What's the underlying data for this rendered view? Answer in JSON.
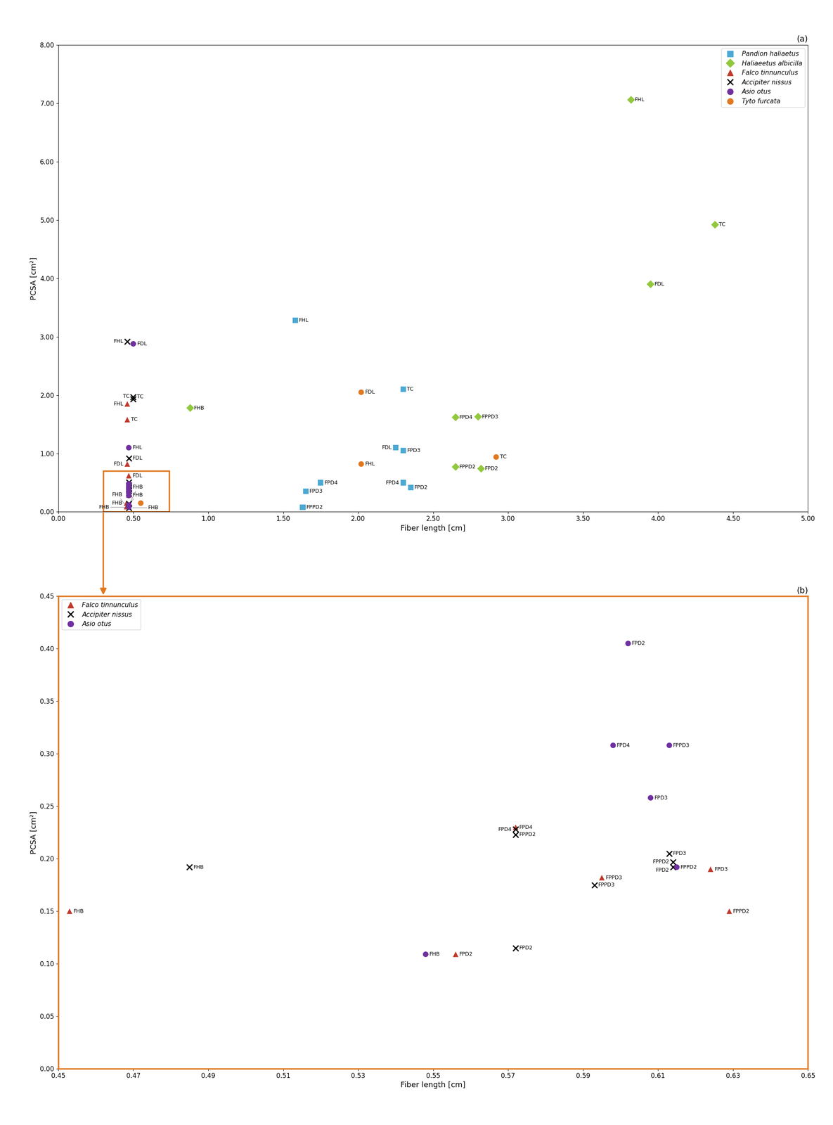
{
  "chart_data": [
    {
      "type": "scatter",
      "title": "(a)",
      "xlabel": "Fiber length [cm]",
      "ylabel": "PCSA [cm²]",
      "xlim": [
        0.0,
        5.0
      ],
      "ylim": [
        0.0,
        8.0
      ],
      "xticks": [
        {
          "value": 0.0,
          "label": "0.00"
        },
        {
          "value": 0.5,
          "label": "0.50"
        },
        {
          "value": 1.0,
          "label": "1.00"
        },
        {
          "value": 1.5,
          "label": "1.50"
        },
        {
          "value": 2.0,
          "label": "2.00"
        },
        {
          "value": 2.5,
          "label": "2.50"
        },
        {
          "value": 3.0,
          "label": "3.00"
        },
        {
          "value": 3.5,
          "label": "3.50"
        },
        {
          "value": 4.0,
          "label": "4.00"
        },
        {
          "value": 4.5,
          "label": "4.50"
        },
        {
          "value": 5.0,
          "label": "5.00"
        }
      ],
      "yticks": [
        {
          "value": 0.0,
          "label": "0.00"
        },
        {
          "value": 1.0,
          "label": "1.00"
        },
        {
          "value": 2.0,
          "label": "2.00"
        },
        {
          "value": 3.0,
          "label": "3.00"
        },
        {
          "value": 4.0,
          "label": "4.00"
        },
        {
          "value": 5.0,
          "label": "5.00"
        },
        {
          "value": 6.0,
          "label": "6.00"
        },
        {
          "value": 7.0,
          "label": "7.00"
        },
        {
          "value": 8.0,
          "label": "8.00"
        }
      ],
      "legend": "upper right",
      "series": [
        {
          "name": "Pandion haliaetus",
          "color": "#4BA9D4",
          "marker": "square",
          "x": [
            1.58,
            2.3,
            2.25,
            2.3,
            2.3,
            2.35,
            1.65,
            1.75,
            1.63
          ],
          "y": [
            3.28,
            2.1,
            1.1,
            1.05,
            0.5,
            0.42,
            0.35,
            0.5,
            0.08
          ],
          "labels": [
            "FHL",
            "TC",
            "FDL",
            "FPD3",
            "FPD4",
            "FPD2",
            "FPD3",
            "FPD4",
            "FPPD2"
          ]
        },
        {
          "name": "Haliaeetus albicilla",
          "color": "#92C83E",
          "marker": "diamond",
          "x": [
            3.82,
            4.38,
            3.95,
            0.88,
            2.65,
            2.8,
            2.65,
            2.82
          ],
          "y": [
            7.06,
            4.92,
            3.9,
            1.78,
            1.62,
            1.63,
            0.77,
            0.74
          ],
          "labels": [
            "FHL",
            "TC",
            "FDL",
            "FHB",
            "FPD4",
            "FPPD3",
            "FPPD2",
            "FPD2"
          ]
        },
        {
          "name": "Falco tinnunculus",
          "color": "#C0392B",
          "marker": "triangle",
          "x": [
            0.46,
            0.46,
            0.46,
            0.47,
            0.47,
            0.47,
            0.47,
            0.47,
            0.47,
            0.455,
            0.455
          ],
          "y": [
            1.85,
            1.58,
            0.82,
            0.62,
            0.49,
            0.44,
            0.39,
            0.34,
            0.29,
            0.15,
            0.09
          ],
          "labels": [
            "FHL",
            "TC",
            "FDL",
            "FDL",
            null,
            null,
            null,
            null,
            null,
            "FHB",
            "FHB"
          ]
        },
        {
          "name": "Accipiter nissus",
          "color": "#000000",
          "marker": "x",
          "x": [
            0.46,
            0.5,
            0.5,
            0.47,
            0.47,
            0.47,
            0.47,
            0.47,
            0.47,
            0.47,
            0.47
          ],
          "y": [
            2.92,
            1.97,
            1.93,
            0.92,
            0.51,
            0.46,
            0.41,
            0.36,
            0.31,
            0.14,
            0.07
          ],
          "labels": [
            "FHL",
            "TC",
            "TC",
            "FDL",
            null,
            null,
            null,
            null,
            null,
            "FHB",
            "FHB"
          ]
        },
        {
          "name": "Asio otus",
          "color": "#7030A0",
          "marker": "circle",
          "x": [
            0.5,
            0.47,
            0.47,
            0.47,
            0.47,
            0.47,
            0.47,
            0.47,
            0.47
          ],
          "y": [
            2.88,
            1.1,
            0.48,
            0.43,
            0.38,
            0.33,
            0.28,
            0.12,
            0.08
          ],
          "labels": [
            "FDL",
            "FHL",
            null,
            null,
            null,
            null,
            null,
            "FHB",
            "FHB"
          ]
        },
        {
          "name": "Tyto furcata",
          "color": "#E07820",
          "marker": "circle",
          "x": [
            2.02,
            2.02,
            2.92,
            0.55
          ],
          "y": [
            2.05,
            0.82,
            0.94,
            0.15
          ],
          "labels": [
            "FDL",
            "FHL",
            "TC",
            null
          ]
        }
      ],
      "zoom_box": {
        "x0": 0.3,
        "y0": 0.0,
        "width": 0.44,
        "height": 0.7,
        "color": "#E07820"
      }
    },
    {
      "type": "scatter",
      "title": "(b)",
      "xlabel": "Fiber length [cm]",
      "ylabel": "PCSA [cm²]",
      "xlim": [
        0.45,
        0.65
      ],
      "ylim": [
        0.0,
        0.45
      ],
      "xticks": [
        0.45,
        0.47,
        0.49,
        0.51,
        0.53,
        0.55,
        0.57,
        0.59,
        0.61,
        0.63,
        0.65
      ],
      "yticks": [
        {
          "value": 0.0,
          "label": "0.00"
        },
        0.05,
        {
          "value": 0.1,
          "label": "0.10"
        },
        0.15,
        {
          "value": 0.2,
          "label": "0.20"
        },
        0.25,
        {
          "value": 0.3,
          "label": "0.30"
        },
        0.35,
        {
          "value": 0.4,
          "label": "0.40"
        },
        0.45
      ],
      "legend": "upper left",
      "series": [
        {
          "name": "Falco tinnunculus",
          "color": "#C0392B",
          "marker": "triangle",
          "x": [
            0.453,
            0.556,
            0.572,
            0.595,
            0.624,
            0.629
          ],
          "y": [
            0.15,
            0.109,
            0.23,
            0.182,
            0.19,
            0.15
          ],
          "labels": [
            "FHB",
            "FPD2",
            "FPD4",
            "FPPD3",
            "FPD3",
            "FPPD2"
          ]
        },
        {
          "name": "Accipiter nissus",
          "color": "#000000",
          "marker": "x",
          "x": [
            0.485,
            0.572,
            0.572,
            0.572,
            0.593,
            0.613,
            0.614,
            0.614
          ],
          "y": [
            0.192,
            0.115,
            0.228,
            0.223,
            0.175,
            0.205,
            0.197,
            0.192
          ],
          "labels": [
            "FHB",
            "FPD2",
            "FPD4",
            "FPPD2",
            "FPPD3",
            "FPD3",
            "FPPD2",
            "FPD2"
          ]
        },
        {
          "name": "Asio otus",
          "color": "#7030A0",
          "marker": "circle",
          "x": [
            0.602,
            0.598,
            0.613,
            0.608,
            0.615,
            0.548
          ],
          "y": [
            0.405,
            0.308,
            0.308,
            0.258,
            0.192,
            0.109
          ],
          "labels": [
            "FPD2",
            "FPD4",
            "FPPD3",
            "FPD3",
            "FPPD2",
            "FHB"
          ]
        }
      ]
    }
  ]
}
